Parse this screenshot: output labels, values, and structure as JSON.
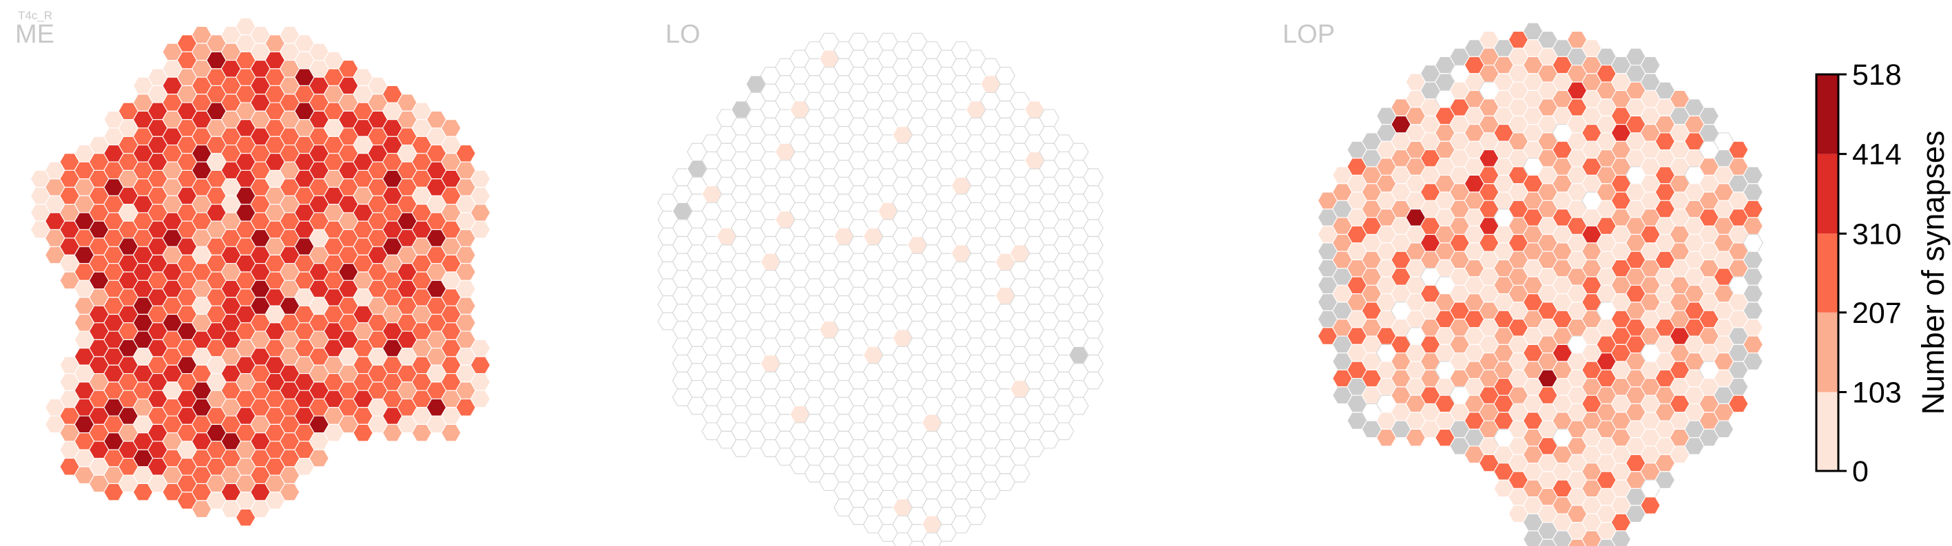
{
  "chart_data": {
    "type": "heatmap",
    "subtype": "hexagonal-column-map",
    "cell_type": "T4c_R",
    "colorbar": {
      "title": "Number of synapses",
      "min": 0,
      "max": 518,
      "ticks": [
        0,
        103,
        207,
        310,
        414,
        518
      ],
      "bins": [
        {
          "range": [
            0,
            103
          ],
          "color": "#fee5d9"
        },
        {
          "range": [
            103,
            207
          ],
          "color": "#fcae91"
        },
        {
          "range": [
            207,
            310
          ],
          "color": "#fb6a4a"
        },
        {
          "range": [
            310,
            414
          ],
          "color": "#de2d26"
        },
        {
          "range": [
            414,
            518
          ],
          "color": "#a50f15"
        }
      ]
    },
    "missing_color": "#cccccc",
    "empty_color": "#ffffff",
    "panels": [
      {
        "name": "ME",
        "label": "ME",
        "distribution": "Mostly 207–310 synapses per column; the densest columns (310–518) cluster toward the lower-left; sparse 0–103 columns along the rim",
        "weights": [
          0.0,
          0.06,
          0.16,
          0.5,
          0.24,
          0.04
        ],
        "edge_missing_fraction": 0.0,
        "edge_light": true,
        "hotspot": "lower-left"
      },
      {
        "name": "LO",
        "label": "LO",
        "distribution": "Almost all columns have no synapses (empty outline); a few columns with 0–103 synapses; missing columns on the rim",
        "weights": [
          0.955,
          0.045,
          0.0,
          0.0,
          0.0,
          0.0
        ],
        "edge_missing_fraction": 0.08,
        "edge_light": false,
        "hotspot": "none"
      },
      {
        "name": "LOP",
        "label": "LOP",
        "distribution": "Mostly 0–207 synapses with scattered 207–310 columns and rare 414–518 columns; many missing columns on the rim",
        "weights": [
          0.04,
          0.46,
          0.32,
          0.16,
          0.015,
          0.005
        ],
        "edge_missing_fraction": 0.55,
        "edge_light": false,
        "hotspot": "left"
      }
    ]
  }
}
